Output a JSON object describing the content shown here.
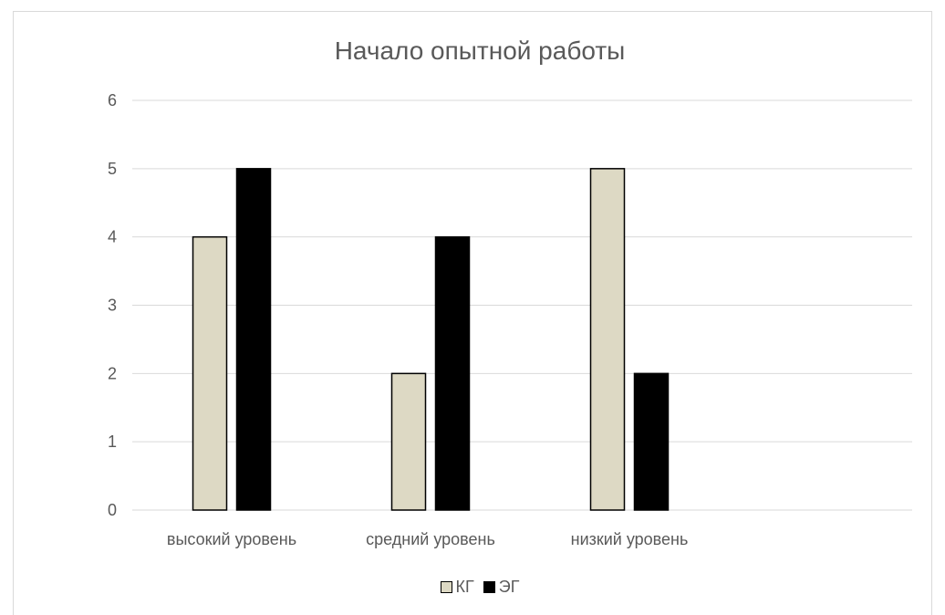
{
  "chart_data": {
    "type": "bar",
    "title": "Начало опытной работы",
    "categories": [
      "высокий уровень",
      "средний уровень",
      "низкий уровень"
    ],
    "series": [
      {
        "name": "КГ",
        "values": [
          4,
          2,
          5
        ],
        "color": "#ddd9c4"
      },
      {
        "name": "ЭГ",
        "values": [
          5,
          4,
          2
        ],
        "color": "#000000"
      }
    ],
    "ylim": [
      0,
      6
    ],
    "yticks": [
      "0",
      "1",
      "2",
      "3",
      "4",
      "5",
      "6"
    ],
    "grid": true,
    "legend_position": "bottom",
    "xlabel": "",
    "ylabel": ""
  }
}
